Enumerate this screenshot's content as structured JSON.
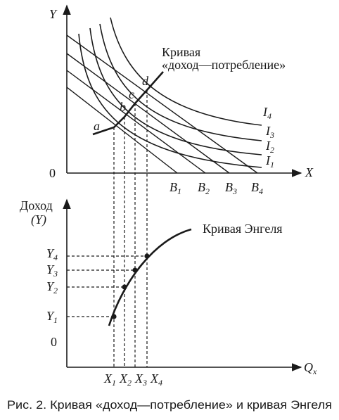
{
  "top_panel": {
    "y_axis_label": "Y",
    "x_axis_label": "X",
    "origin_label": "0",
    "icc_caption_line1": "Кривая",
    "icc_caption_line2": "«доход—потребление»",
    "points": [
      "a",
      "b",
      "c",
      "d"
    ],
    "budget_lines": [
      {
        "main": "B",
        "sub": "1"
      },
      {
        "main": "B",
        "sub": "2"
      },
      {
        "main": "B",
        "sub": "3"
      },
      {
        "main": "B",
        "sub": "4"
      }
    ],
    "indifference_curves": [
      {
        "main": "I",
        "sub": "1"
      },
      {
        "main": "I",
        "sub": "2"
      },
      {
        "main": "I",
        "sub": "3"
      },
      {
        "main": "I",
        "sub": "4"
      }
    ]
  },
  "bottom_panel": {
    "y_axis_label_line1": "Доход",
    "y_axis_label_line2": "(Y)",
    "x_axis_label": {
      "main": "Q",
      "sub": "x"
    },
    "origin_label": "0",
    "engel_caption": "Кривая Энгеля",
    "y_ticks": [
      {
        "main": "Y",
        "sub": "1"
      },
      {
        "main": "Y",
        "sub": "2"
      },
      {
        "main": "Y",
        "sub": "3"
      },
      {
        "main": "Y",
        "sub": "4"
      }
    ],
    "x_ticks": [
      {
        "main": "X",
        "sub": "1"
      },
      {
        "main": "X",
        "sub": "2"
      },
      {
        "main": "X",
        "sub": "3"
      },
      {
        "main": "X",
        "sub": "4"
      }
    ]
  },
  "caption": "Рис. 2. Кривая «доход—потребление» и кривая Энгеля"
}
